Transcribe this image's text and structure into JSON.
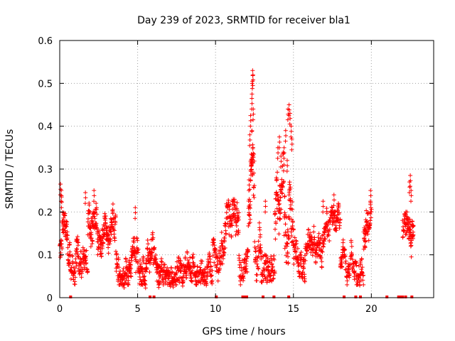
{
  "chart_data": {
    "type": "scatter",
    "title": "Day 239 of 2023, SRMTID for receiver bla1",
    "xlabel": "GPS time / hours",
    "ylabel": "SRMTID / TECUs",
    "xlim": [
      0,
      24
    ],
    "ylim": [
      0,
      0.6
    ],
    "xticks": [
      0,
      5,
      10,
      15,
      20
    ],
    "xtick_labels": [
      "0",
      "5",
      "10",
      "15",
      "20"
    ],
    "yticks": [
      0,
      0.1,
      0.2,
      0.3,
      0.4,
      0.5,
      0.6
    ],
    "ytick_labels": [
      "0",
      "0.1",
      "0.2",
      "0.3",
      "0.4",
      "0.5",
      "0.6"
    ],
    "grid": true,
    "marker": "+",
    "marker_color": "#ff0000",
    "series": [
      {
        "name": "SRMTID",
        "segments": [
          {
            "start": 0.0,
            "end": 0.5,
            "base": 0.12,
            "spread": 0.06,
            "n": 40
          },
          {
            "start": 0.5,
            "end": 1.8,
            "base": 0.1,
            "spread": 0.06,
            "n": 90
          },
          {
            "start": 1.8,
            "end": 2.4,
            "base": 0.16,
            "spread": 0.07,
            "n": 50
          },
          {
            "start": 2.4,
            "end": 3.6,
            "base": 0.14,
            "spread": 0.06,
            "n": 90
          },
          {
            "start": 3.6,
            "end": 4.8,
            "base": 0.1,
            "spread": 0.06,
            "n": 90
          },
          {
            "start": 4.8,
            "end": 6.0,
            "base": 0.11,
            "spread": 0.06,
            "n": 90
          },
          {
            "start": 6.0,
            "end": 8.0,
            "base": 0.09,
            "spread": 0.05,
            "n": 140
          },
          {
            "start": 8.0,
            "end": 9.8,
            "base": 0.09,
            "spread": 0.05,
            "n": 120
          },
          {
            "start": 9.8,
            "end": 11.5,
            "base": 0.13,
            "spread": 0.07,
            "n": 120
          },
          {
            "start": 11.5,
            "end": 12.1,
            "base": 0.11,
            "spread": 0.06,
            "n": 40
          },
          {
            "start": 12.1,
            "end": 12.5,
            "base": 0.22,
            "spread": 0.12,
            "n": 40
          },
          {
            "start": 12.5,
            "end": 13.8,
            "base": 0.13,
            "spread": 0.07,
            "n": 90
          },
          {
            "start": 13.8,
            "end": 14.4,
            "base": 0.2,
            "spread": 0.1,
            "n": 50
          },
          {
            "start": 14.4,
            "end": 15.0,
            "base": 0.22,
            "spread": 0.12,
            "n": 50
          },
          {
            "start": 15.0,
            "end": 16.5,
            "base": 0.12,
            "spread": 0.06,
            "n": 100
          },
          {
            "start": 16.5,
            "end": 18.0,
            "base": 0.14,
            "spread": 0.06,
            "n": 100
          },
          {
            "start": 18.0,
            "end": 19.5,
            "base": 0.09,
            "spread": 0.05,
            "n": 100
          },
          {
            "start": 19.5,
            "end": 20.0,
            "base": 0.14,
            "spread": 0.06,
            "n": 40
          },
          {
            "start": 22.0,
            "end": 22.7,
            "base": 0.17,
            "spread": 0.06,
            "n": 60
          }
        ],
        "peaks": [
          {
            "x": 0.05,
            "y": 0.265
          },
          {
            "x": 0.1,
            "y": 0.25
          },
          {
            "x": 0.12,
            "y": 0.235
          },
          {
            "x": 1.65,
            "y": 0.245
          },
          {
            "x": 2.2,
            "y": 0.25
          },
          {
            "x": 4.85,
            "y": 0.21
          },
          {
            "x": 12.2,
            "y": 0.38
          },
          {
            "x": 12.25,
            "y": 0.425
          },
          {
            "x": 12.3,
            "y": 0.335
          },
          {
            "x": 12.33,
            "y": 0.465
          },
          {
            "x": 12.35,
            "y": 0.5
          },
          {
            "x": 12.38,
            "y": 0.53
          },
          {
            "x": 12.4,
            "y": 0.52
          },
          {
            "x": 12.42,
            "y": 0.44
          },
          {
            "x": 12.15,
            "y": 0.275
          },
          {
            "x": 14.0,
            "y": 0.35
          },
          {
            "x": 14.1,
            "y": 0.375
          },
          {
            "x": 14.2,
            "y": 0.33
          },
          {
            "x": 14.4,
            "y": 0.35
          },
          {
            "x": 14.5,
            "y": 0.39
          },
          {
            "x": 14.65,
            "y": 0.44
          },
          {
            "x": 14.72,
            "y": 0.45
          },
          {
            "x": 14.78,
            "y": 0.43
          },
          {
            "x": 14.85,
            "y": 0.4
          },
          {
            "x": 14.6,
            "y": 0.32
          },
          {
            "x": 14.9,
            "y": 0.37
          },
          {
            "x": 22.5,
            "y": 0.285
          },
          {
            "x": 22.45,
            "y": 0.27
          },
          {
            "x": 22.55,
            "y": 0.25
          },
          {
            "x": 17.6,
            "y": 0.24
          },
          {
            "x": 16.9,
            "y": 0.225
          },
          {
            "x": 19.95,
            "y": 0.25
          },
          {
            "x": 13.2,
            "y": 0.225
          }
        ],
        "zero_markers": [
          0.7,
          5.8,
          6.05,
          10.05,
          11.75,
          11.85,
          12.0,
          13.05,
          13.75,
          14.7,
          18.25,
          19.0,
          19.3,
          21.0,
          21.75,
          21.85,
          22.0,
          22.2,
          22.6
        ]
      }
    ]
  }
}
